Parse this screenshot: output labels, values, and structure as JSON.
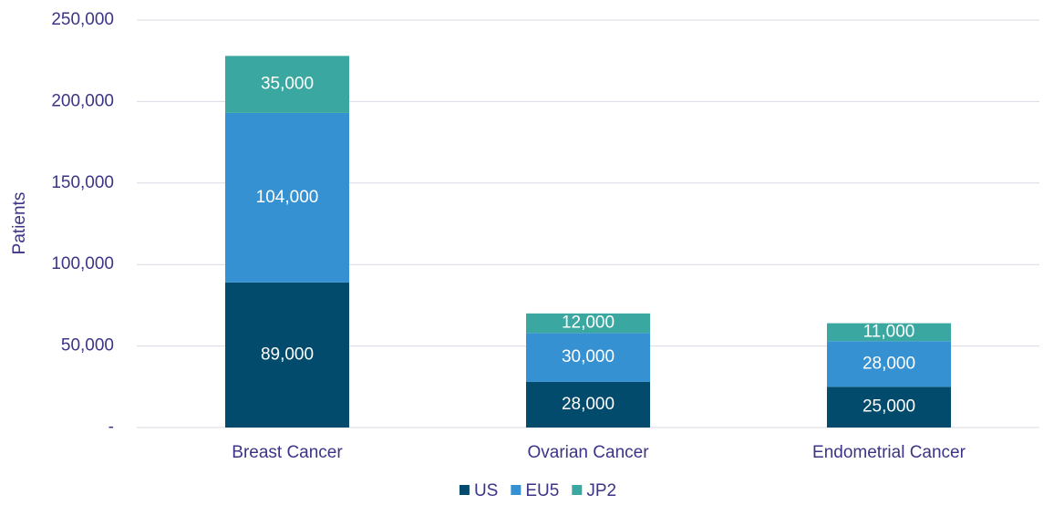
{
  "chart_data": {
    "type": "stacked_bar",
    "y_label": "Patients",
    "categories": [
      "Breast Cancer",
      "Ovarian Cancer",
      "Endometrial Cancer"
    ],
    "series": [
      {
        "name": "US",
        "color": "#024b6c",
        "values": [
          89000,
          28000,
          25000
        ],
        "value_labels": [
          "89,000",
          "28,000",
          "25,000"
        ]
      },
      {
        "name": "EU5",
        "color": "#3591d1",
        "values": [
          104000,
          30000,
          28000
        ],
        "value_labels": [
          "104,000",
          "30,000",
          "28,000"
        ]
      },
      {
        "name": "JP2",
        "color": "#3aa8a0",
        "values": [
          35000,
          12000,
          11000
        ],
        "value_labels": [
          "35,000",
          "12,000",
          "11,000"
        ]
      }
    ],
    "ylim": [
      0,
      250000
    ],
    "yticks": [
      {
        "value": 0,
        "label": "-"
      },
      {
        "value": 50000,
        "label": "50,000"
      },
      {
        "value": 100000,
        "label": "100,000"
      },
      {
        "value": 150000,
        "label": "150,000"
      },
      {
        "value": 200000,
        "label": "200,000"
      },
      {
        "value": 250000,
        "label": "250,000"
      }
    ],
    "grid": true,
    "legend": "bottom"
  }
}
